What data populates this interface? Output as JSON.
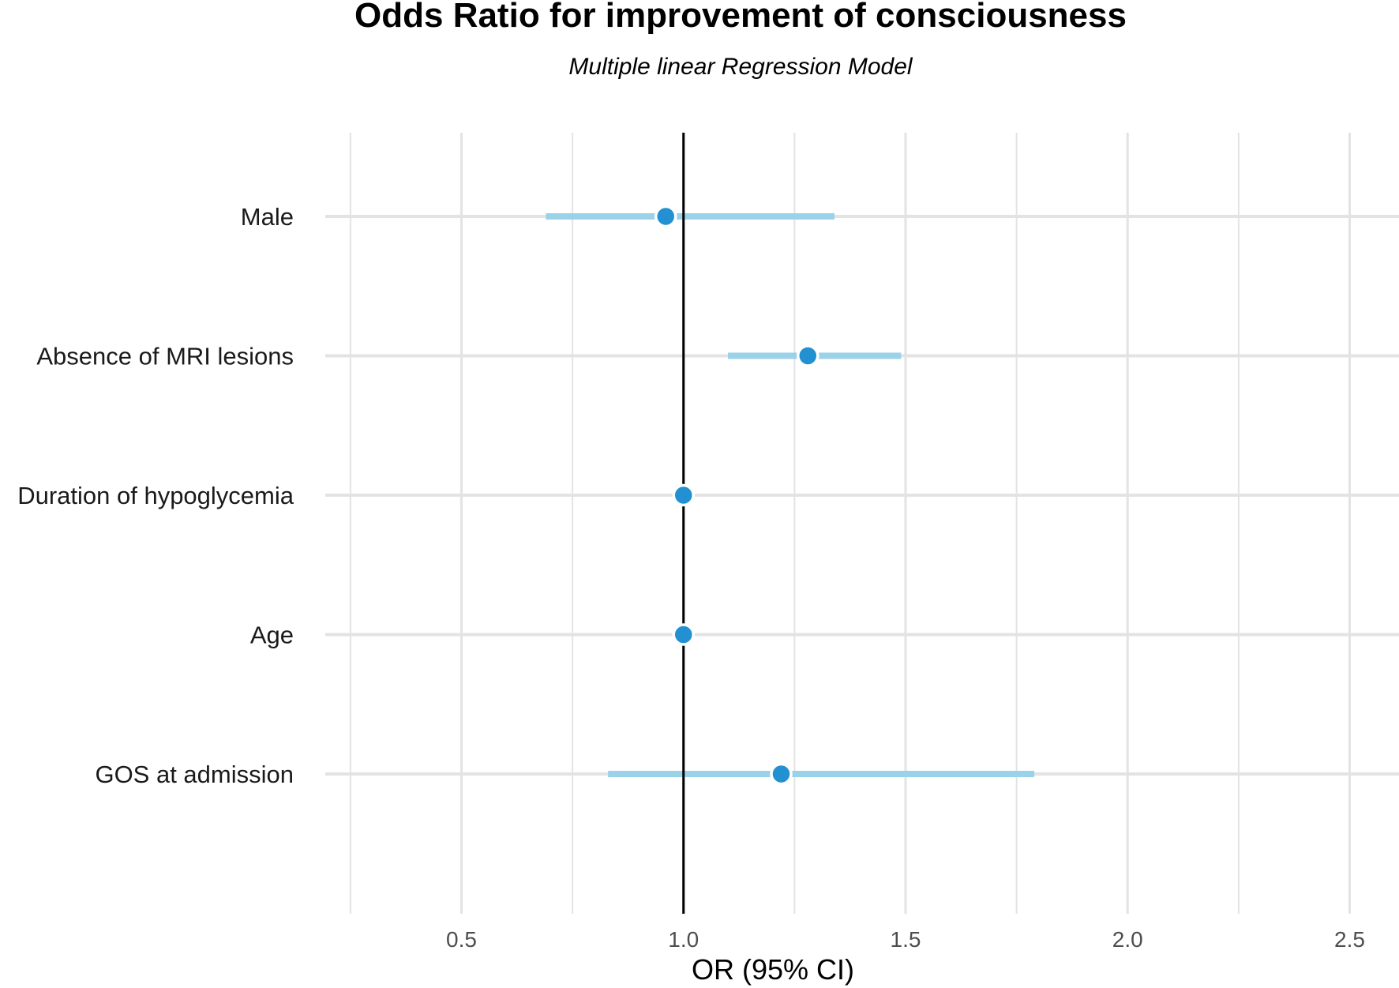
{
  "chart_data": {
    "type": "forest",
    "title": "Odds Ratio for improvement of consciousness",
    "subtitle": "Multiple linear Regression Model",
    "xlabel": "OR (95% CI)",
    "xlim": [
      0.25,
      2.6
    ],
    "xticks": [
      0.5,
      1.0,
      1.5,
      2.0,
      2.5
    ],
    "xtick_labels": [
      "0.5",
      "1.0",
      "1.5",
      "2.0",
      "2.5"
    ],
    "minor_xticks": [
      0.25,
      0.75,
      1.25,
      1.75,
      2.25
    ],
    "reference_line": 1.0,
    "categories": [
      "Male",
      "Absence of MRI lesions",
      "Duration of hypoglycemia",
      "Age",
      "GOS at admission"
    ],
    "estimates": [
      0.96,
      1.28,
      1.0,
      1.0,
      1.22
    ],
    "ci_lower": [
      0.69,
      1.1,
      1.0,
      1.0,
      0.83
    ],
    "ci_upper": [
      1.34,
      1.49,
      1.0,
      1.0,
      1.79
    ],
    "grid": true,
    "colors": {
      "point": "#2391d1",
      "ci": "#9ad2ea",
      "reference": "#000000"
    }
  }
}
